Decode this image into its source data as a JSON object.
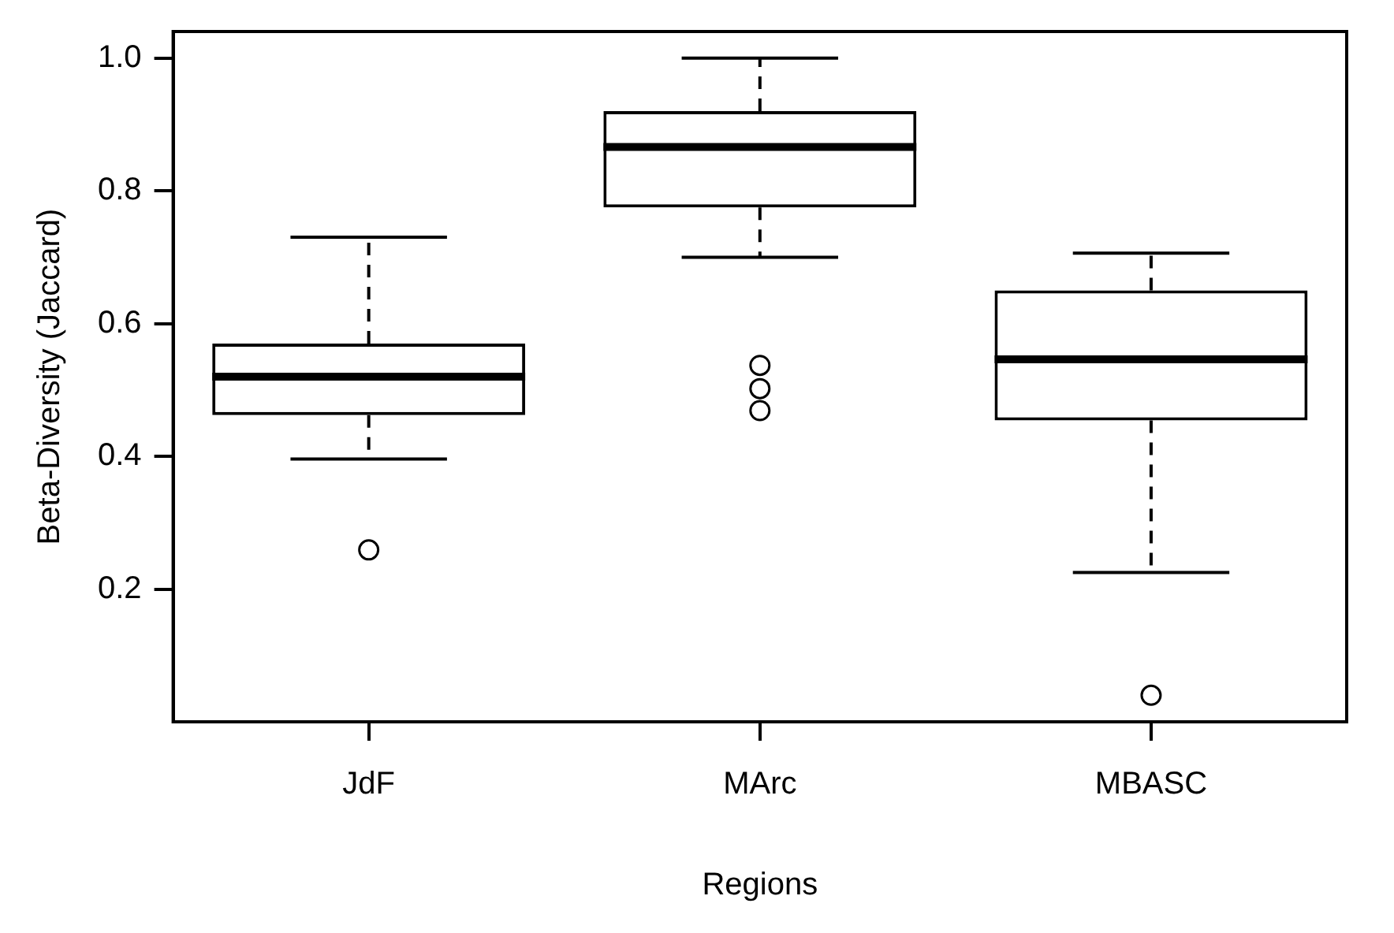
{
  "chart_data": {
    "type": "box",
    "xlabel": "Regions",
    "ylabel": "Beta-Diversity (Jaccard)",
    "categories": [
      "JdF",
      "MArc",
      "MBASC"
    ],
    "boxes": [
      {
        "low": 0.396,
        "q1": 0.462,
        "median": 0.52,
        "q3": 0.57,
        "high": 0.73,
        "outliers": [
          0.259
        ]
      },
      {
        "low": 0.7,
        "q1": 0.775,
        "median": 0.866,
        "q3": 0.92,
        "high": 1.0,
        "outliers": [
          0.537,
          0.502,
          0.469
        ]
      },
      {
        "low": 0.225,
        "q1": 0.454,
        "median": 0.546,
        "q3": 0.65,
        "high": 0.706,
        "outliers": [
          0.04
        ]
      }
    ],
    "ylim": [
      0,
      1.04
    ],
    "yticks": [
      0.2,
      0.4,
      0.6,
      0.8,
      {
        "value": 1,
        "label": "1.0"
      }
    ],
    "marker": "circle"
  }
}
